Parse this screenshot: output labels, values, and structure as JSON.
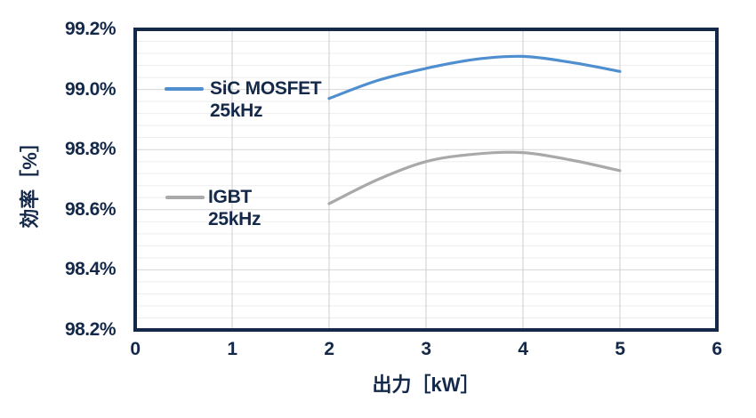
{
  "chart_data": {
    "type": "line",
    "title": "",
    "xlabel": "出力［kW］",
    "ylabel": "効率［%］",
    "xlim": [
      0,
      6
    ],
    "ylim": [
      98.2,
      99.2
    ],
    "x_tick_values": [
      0,
      1,
      2,
      3,
      4,
      5,
      6
    ],
    "x_tick_labels": [
      "0",
      "1",
      "2",
      "3",
      "4",
      "5",
      "6"
    ],
    "y_tick_values": [
      99.2,
      99.0,
      98.8,
      98.6,
      98.4,
      98.2
    ],
    "y_tick_labels": [
      "99.2%",
      "99.0%",
      "98.8%",
      "98.6%",
      "98.4%",
      "98.2%"
    ],
    "y_minor_step": 0.04,
    "grid": "horizontal major + minor lines, vertical major lines, dark navy frame",
    "legend_position": "inside-top-left",
    "series": [
      {
        "name": "SiC MOSFET",
        "frequency": "25kHz",
        "color": "#4f8fd0",
        "x": [
          2,
          2.5,
          3,
          3.5,
          4,
          4.5,
          5
        ],
        "y": [
          98.97,
          99.03,
          99.07,
          99.1,
          99.11,
          99.09,
          99.06
        ]
      },
      {
        "name": "IGBT",
        "frequency": "25kHz",
        "color": "#a9a9a9",
        "x": [
          2,
          2.5,
          3,
          3.5,
          4,
          4.5,
          5
        ],
        "y": [
          98.62,
          98.7,
          98.76,
          98.785,
          98.79,
          98.765,
          98.73
        ]
      }
    ]
  },
  "colors": {
    "frame": "#14294a",
    "text": "#14294a",
    "grid_major_h": "#d6d6d6",
    "grid_minor_h": "#ededed",
    "grid_major_v": "#cccccc",
    "background": "#ffffff"
  },
  "geometry_note": "plot area frame left 152, top 33, right 806, bottom 371"
}
